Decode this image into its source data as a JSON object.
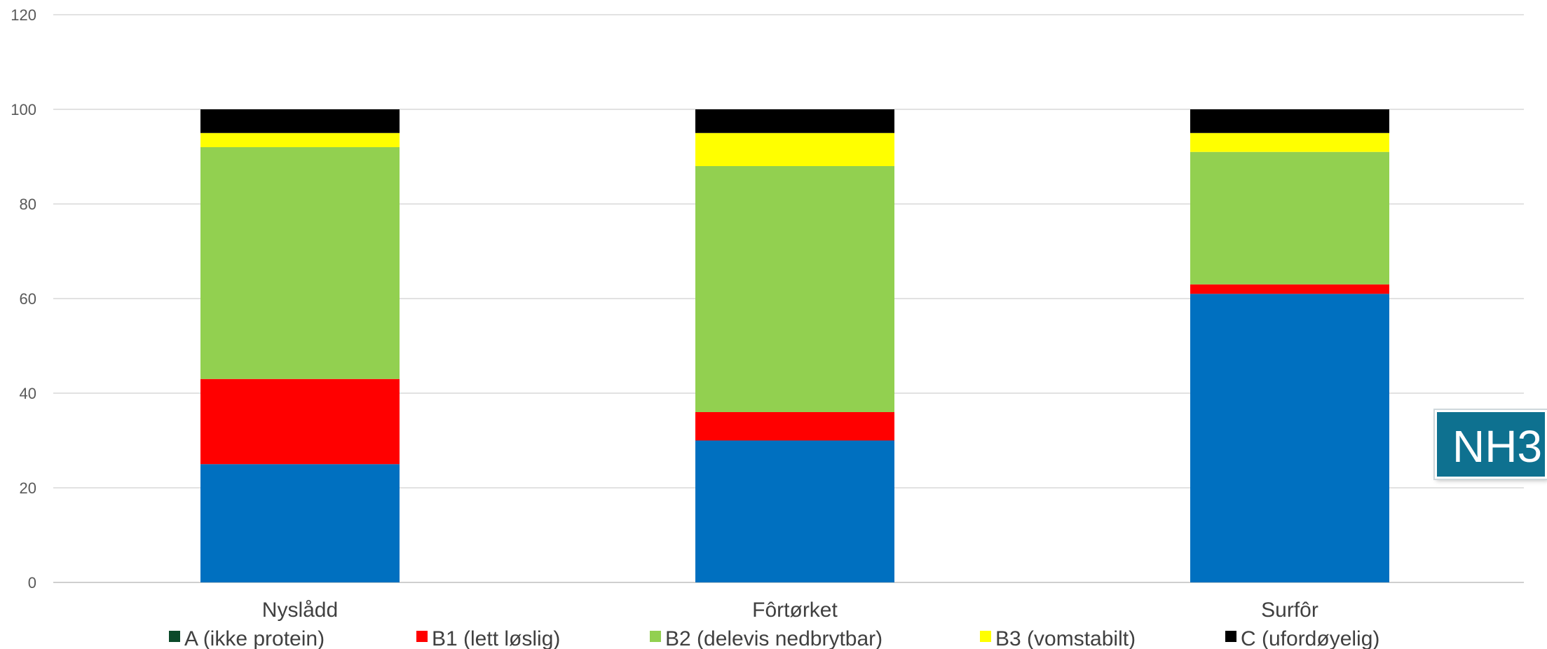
{
  "chart_data": {
    "type": "bar",
    "stacked": true,
    "categories": [
      "Nyslådd",
      "Fôrtørket",
      "Surfôr"
    ],
    "series": [
      {
        "name": "A (ikke protein)",
        "color": "#0070c0",
        "legend_color": "#0b4a2a",
        "values": [
          25,
          30,
          61
        ]
      },
      {
        "name": "B1 (lett løslig)",
        "color": "#ff0000",
        "values": [
          18,
          6,
          2
        ]
      },
      {
        "name": "B2 (delevis nedbrytbar)",
        "color": "#92d050",
        "values": [
          49,
          52,
          28
        ]
      },
      {
        "name": "B3 (vomstabilt)",
        "color": "#ffff00",
        "values": [
          3,
          7,
          4
        ]
      },
      {
        "name": "C (ufordøyelig)",
        "color": "#000000",
        "values": [
          5,
          5,
          5
        ]
      }
    ],
    "ylim": [
      0,
      120
    ],
    "yticks": [
      0,
      20,
      40,
      60,
      80,
      100,
      120
    ],
    "grid": true,
    "legend_position": "bottom"
  },
  "badge": {
    "text": "NH3",
    "color": "#0e7190"
  }
}
